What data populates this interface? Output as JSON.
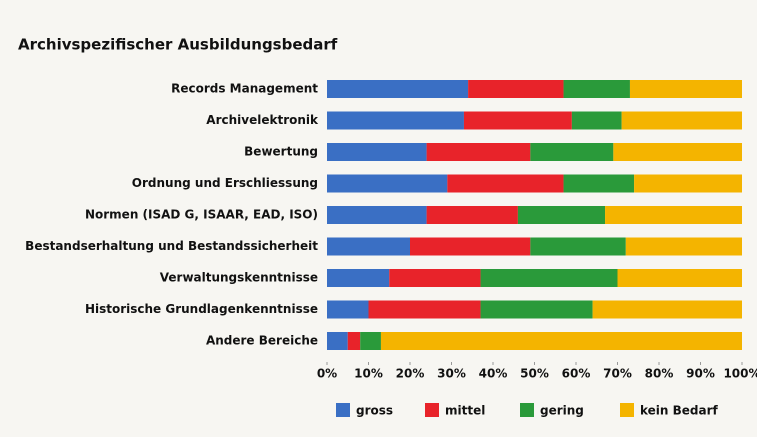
{
  "chart_data": {
    "type": "stacked-bar-horizontal",
    "title": "Archivspezifischer Ausbildungsbedarf",
    "categories": [
      "Records Management",
      "Archivelektronik",
      "Bewertung",
      "Ordnung und Erschliessung",
      "Normen (ISAD G, ISAAR, EAD, ISO)",
      "Bestandserhaltung und Bestandssicherheit",
      "Verwaltungskenntnisse",
      "Historische Grundlagenkenntnisse",
      "Andere Bereiche"
    ],
    "series": [
      {
        "name": "gross",
        "color": "#3a6fc4",
        "values": [
          34,
          33,
          24,
          29,
          24,
          20,
          15,
          10,
          5
        ]
      },
      {
        "name": "mittel",
        "color": "#e8232a",
        "values": [
          23,
          26,
          25,
          28,
          22,
          29,
          22,
          27,
          3
        ]
      },
      {
        "name": "gering",
        "color": "#2a9a3a",
        "values": [
          16,
          12,
          20,
          17,
          21,
          23,
          33,
          27,
          5
        ]
      },
      {
        "name": "kein Bedarf",
        "color": "#f4b400",
        "values": [
          27,
          29,
          31,
          26,
          33,
          28,
          30,
          36,
          87
        ]
      }
    ],
    "xlim": [
      0,
      100
    ],
    "xticks": [
      {
        "value": 0,
        "label": "0%"
      },
      {
        "value": 10,
        "label": "10%"
      },
      {
        "value": 20,
        "label": "20%"
      },
      {
        "value": 30,
        "label": "30%"
      },
      {
        "value": 40,
        "label": "40%"
      },
      {
        "value": 50,
        "label": "50%"
      },
      {
        "value": 60,
        "label": "60%"
      },
      {
        "value": 70,
        "label": "70%"
      },
      {
        "value": 80,
        "label": "80%"
      },
      {
        "value": 90,
        "label": "90%"
      },
      {
        "value": 100,
        "label": "100%"
      }
    ],
    "legend": "bottom"
  }
}
